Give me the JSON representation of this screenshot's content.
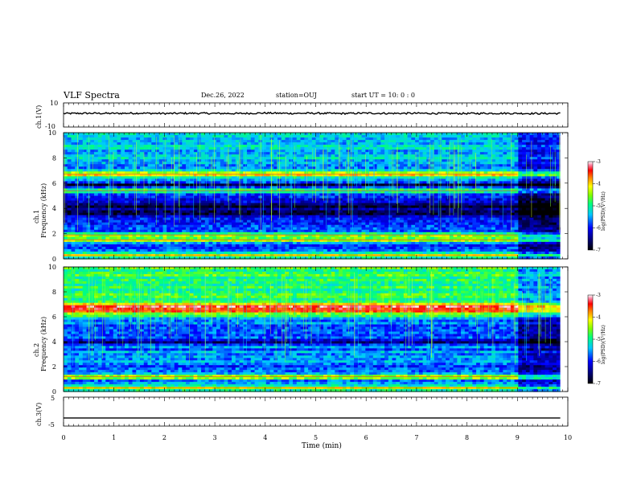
{
  "header": {
    "title": "VLF Spectra",
    "date": "Dec.26, 2022",
    "station": "station=OUJ",
    "start": "start  UT =   10: 0  : 0"
  },
  "chart_data": [
    {
      "type": "line",
      "panel": "ch1-waveform",
      "ylabel": "ch.1(V)",
      "ylim": [
        -10,
        10
      ],
      "yticks": [
        "10",
        "-10"
      ],
      "xlim": [
        0,
        10
      ],
      "x": [
        0,
        0.5,
        1,
        1.5,
        2,
        2.5,
        3,
        3.5,
        4,
        4.5,
        5,
        5.5,
        6,
        6.5,
        7,
        7.5,
        8,
        8.5,
        9,
        9.5,
        9.85
      ],
      "values": [
        1.2,
        1.4,
        1.3,
        1.5,
        1.2,
        1.4,
        1.3,
        1.2,
        1.6,
        1.3,
        1.4,
        1.2,
        1.5,
        1.3,
        1.4,
        1.3,
        1.2,
        1.4,
        1.3,
        1.2,
        1.3
      ],
      "color": "#000000"
    },
    {
      "type": "heatmap",
      "panel": "ch1-spectrogram",
      "ylabel": "ch.1\nFrequency (kHz)",
      "ylim": [
        0,
        10
      ],
      "yticks": [
        "0",
        "2",
        "4",
        "6",
        "8",
        "10"
      ],
      "xlim": [
        0,
        10
      ],
      "colorbar": {
        "label": "log(PSD)(V²/Hz)",
        "range": [
          -7,
          -3
        ],
        "ticks": [
          "-3",
          "-4",
          "-5",
          "-6",
          "-7"
        ]
      },
      "strong_bands_khz": [
        0.3,
        1.5,
        1.9,
        5.4,
        6.7
      ],
      "dark_bands_khz": [
        3.7,
        4.2,
        5.9
      ],
      "data_end_min": 9.85,
      "signal_drop_min": 9.0
    },
    {
      "type": "heatmap",
      "panel": "ch2-spectrogram",
      "ylabel": "ch.2\nFrequency (kHz)",
      "ylim": [
        0,
        10
      ],
      "yticks": [
        "0",
        "2",
        "4",
        "6",
        "8",
        "10"
      ],
      "xlim": [
        0,
        10
      ],
      "colorbar": {
        "label": "log(PSD)(V²/Hz)",
        "range": [
          -7,
          -3
        ],
        "ticks": [
          "-3",
          "-4",
          "-5",
          "-6",
          "-7"
        ]
      },
      "strong_bands_khz": [
        0.3,
        1.2,
        6.5,
        6.9
      ],
      "dark_bands_khz": [
        4.0
      ],
      "data_end_min": 9.85,
      "signal_drop_min": 9.0
    },
    {
      "type": "line",
      "panel": "ch3-waveform",
      "ylabel": "ch.3(V)",
      "ylim": [
        -5,
        5
      ],
      "yticks": [
        "5",
        "0",
        "-5"
      ],
      "xlim": [
        0,
        10
      ],
      "x": [
        0,
        9.85
      ],
      "values": [
        -2.2,
        -2.2
      ],
      "color": "#000000",
      "xlabel": "Time (min)",
      "xticks": [
        "0",
        "1",
        "2",
        "3",
        "4",
        "5",
        "6",
        "7",
        "8",
        "9",
        "10"
      ]
    }
  ]
}
